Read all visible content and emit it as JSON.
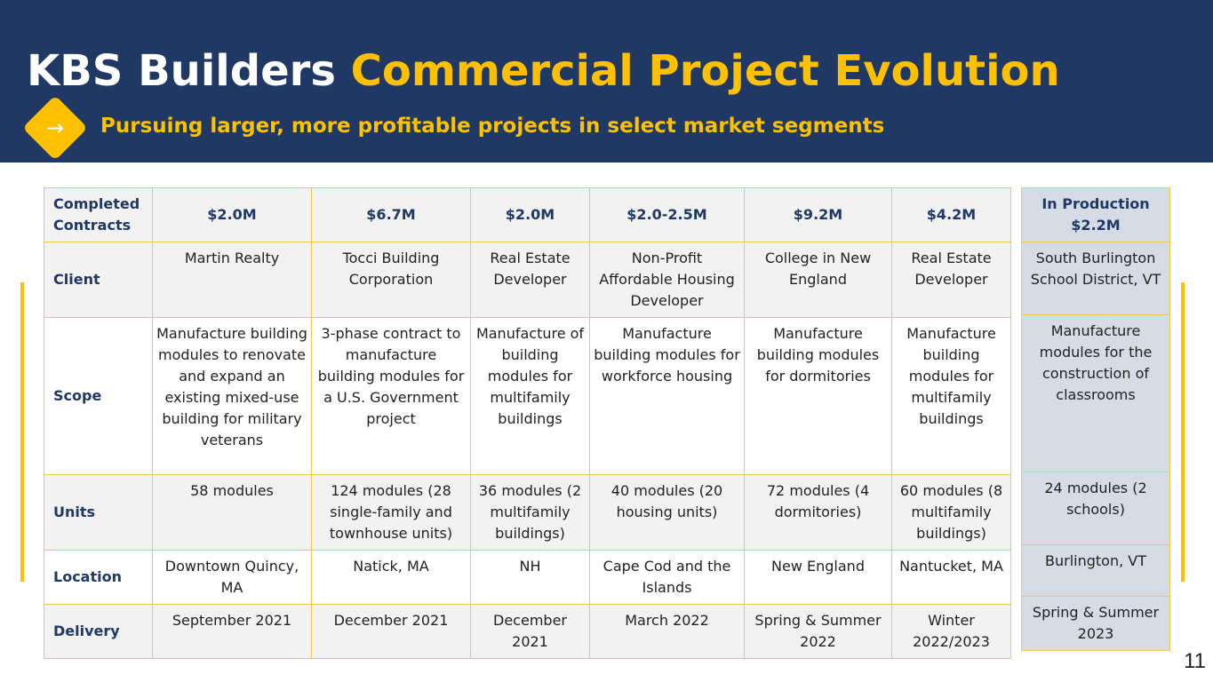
{
  "header": {
    "title_main": "KBS Builders",
    "title_accent": "Commercial Project Evolution",
    "subtitle": "Pursuing larger, more profitable projects in select market segments",
    "bullet_icon": "arrow-right-icon"
  },
  "colors": {
    "navy": "#1f3864",
    "gold": "#ffc000",
    "production_fill": "#d6dce5"
  },
  "completed": {
    "header_label": "Completed Contracts",
    "values": [
      "$2.0M",
      "$6.7M",
      "$2.0M",
      "$2.0-2.5M",
      "$9.2M",
      "$4.2M"
    ],
    "rows": [
      {
        "label": "Client",
        "cells": [
          "Martin Realty",
          "Tocci Building Corporation",
          "Real Estate Developer",
          "Non-Profit Affordable Housing Developer",
          "College in New England",
          "Real Estate Developer"
        ]
      },
      {
        "label": "Scope",
        "cells": [
          "Manufacture building modules to renovate and expand an existing mixed-use building for military veterans",
          "3-phase contract to manufacture building modules for a U.S. Government project",
          "Manufacture of building modules for multifamily buildings",
          "Manufacture building modules for workforce housing",
          "Manufacture building modules for dormitories",
          "Manufacture building modules for multifamily buildings"
        ]
      },
      {
        "label": "Units",
        "cells": [
          "58 modules",
          "124 modules (28 single-family and townhouse units)",
          "36 modules (2 multifamily buildings)",
          "40 modules (20 housing units)",
          "72 modules (4 dormitories)",
          "60 modules (8 multifamily buildings)"
        ]
      },
      {
        "label": "Location",
        "cells": [
          "Downtown Quincy, MA",
          "Natick, MA",
          "NH",
          "Cape Cod and the Islands",
          "New England",
          "Nantucket, MA"
        ]
      },
      {
        "label": "Delivery",
        "cells": [
          "September 2021",
          "December 2021",
          "December 2021",
          "March 2022",
          "Spring & Summer 2022",
          "Winter 2022/2023"
        ]
      }
    ]
  },
  "production": {
    "header_label": "In Production",
    "header_value": "$2.2M",
    "cells": [
      "South Burlington School District, VT",
      "Manufacture modules for the construction of classrooms",
      "24 modules (2 schools)",
      "Burlington, VT",
      "Spring & Summer 2023"
    ]
  },
  "page_number": "11"
}
